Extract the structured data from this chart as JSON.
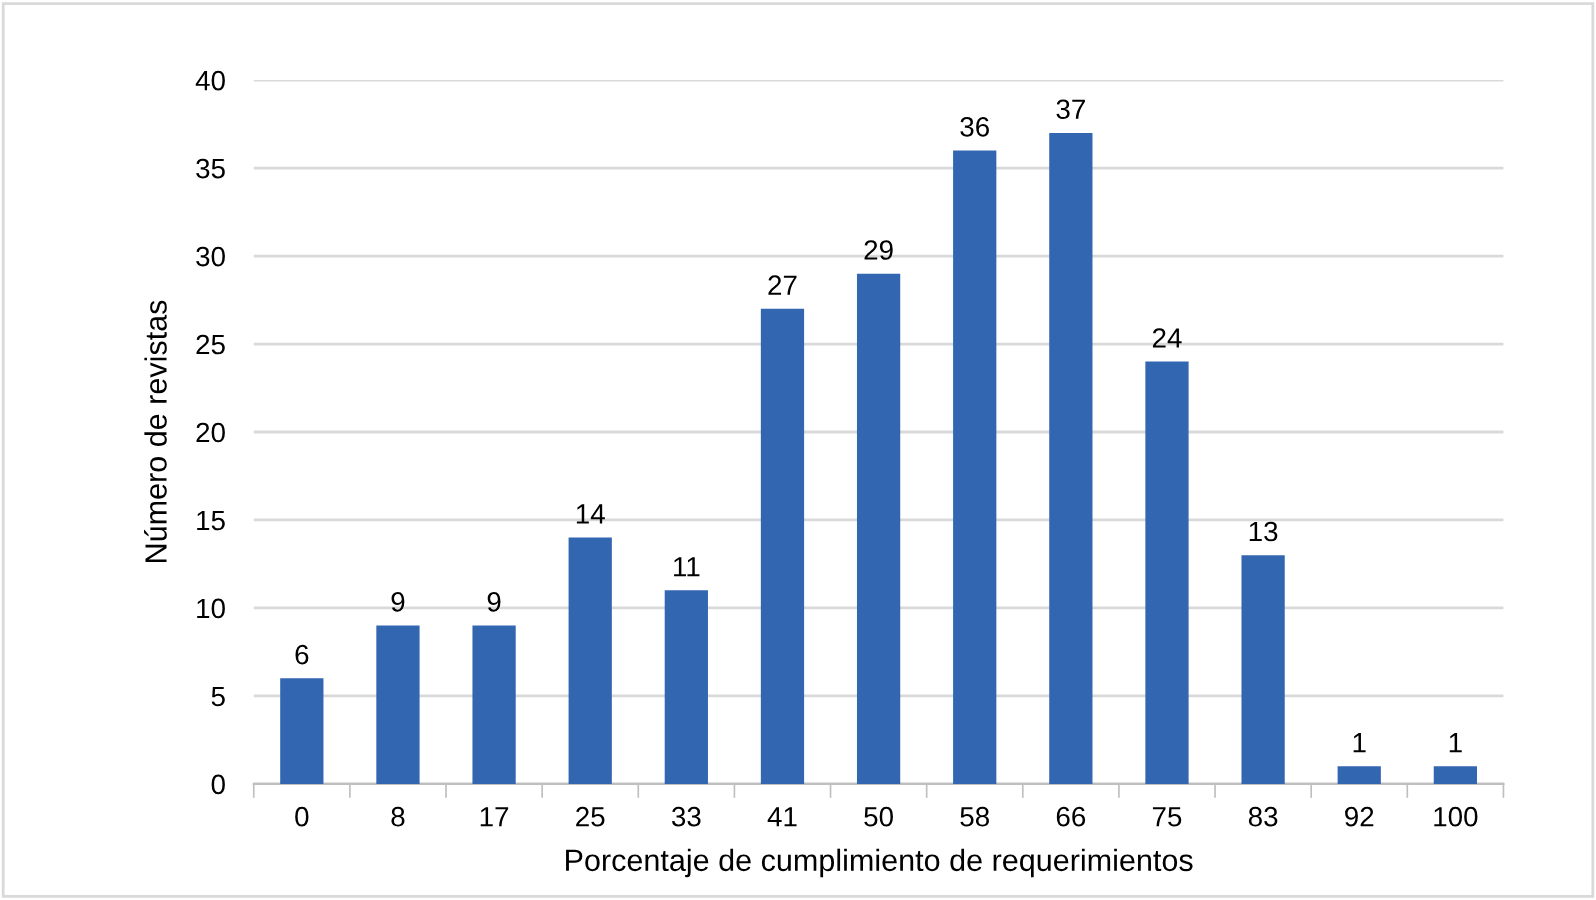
{
  "chart_data": {
    "type": "bar",
    "xlabel": "Porcentaje de cumplimiento de requerimientos",
    "ylabel": "Número de revistas",
    "categories": [
      "0",
      "8",
      "17",
      "25",
      "33",
      "41",
      "50",
      "58",
      "66",
      "75",
      "83",
      "92",
      "100"
    ],
    "values": [
      6,
      9,
      9,
      14,
      11,
      27,
      29,
      36,
      37,
      24,
      13,
      1,
      1
    ],
    "color": "#3366b1",
    "ylim": [
      0,
      40
    ],
    "yticks": [
      0,
      5,
      10,
      15,
      20,
      25,
      30,
      35,
      40
    ],
    "grid": "y",
    "data_labels": true
  }
}
